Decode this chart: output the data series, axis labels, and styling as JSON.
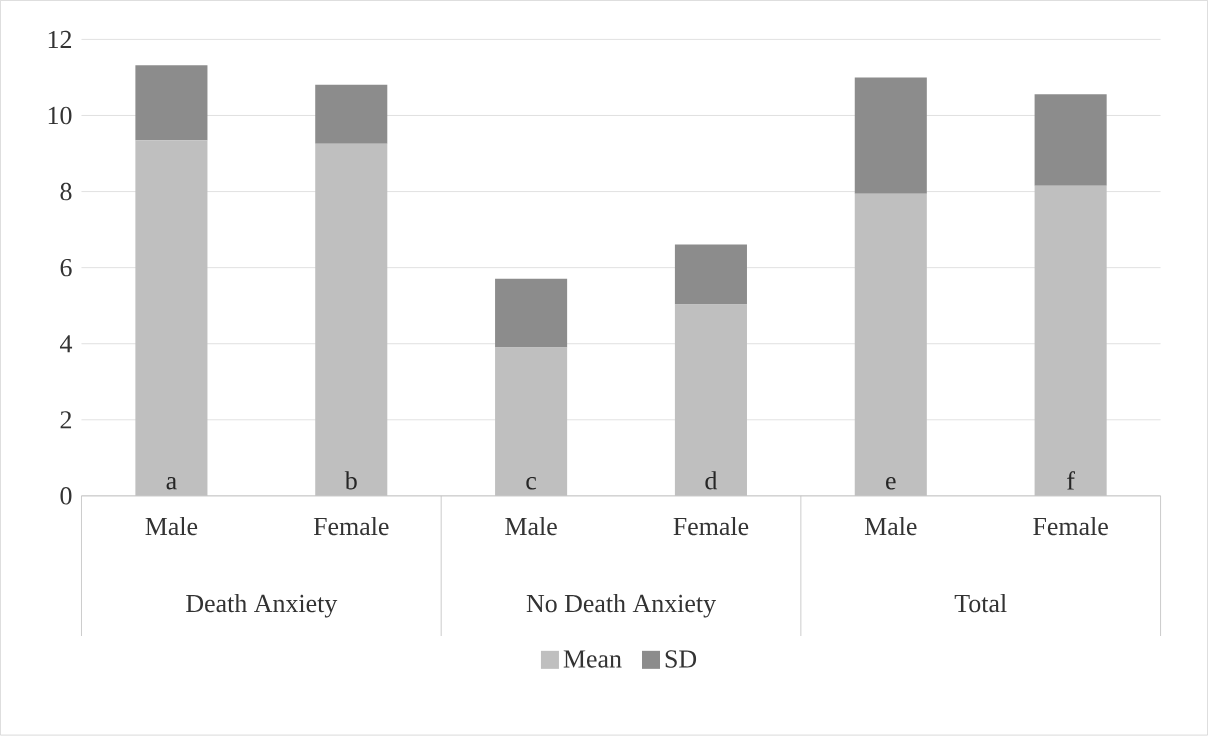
{
  "chart_data": {
    "type": "bar",
    "stacked": true,
    "categories": [
      "Male",
      "Female",
      "Male",
      "Female",
      "Male",
      "Female"
    ],
    "series": [
      {
        "name": "Mean",
        "color": "#bfbfbf",
        "values": [
          9.35,
          9.26,
          3.9,
          5.03,
          7.94,
          8.15
        ],
        "value_labels": [
          "a",
          "b",
          "c",
          "d",
          "e",
          "f"
        ]
      },
      {
        "name": "SD",
        "color": "#8c8c8c",
        "values": [
          1.97,
          1.55,
          1.81,
          1.58,
          3.06,
          2.41
        ]
      }
    ],
    "annotations": [
      "Death Anxiety",
      "No Death Anxiety",
      "Total"
    ],
    "ylim": [
      0,
      12
    ],
    "yticks": [
      0,
      2,
      4,
      6,
      8,
      10,
      12
    ],
    "grid": "y",
    "legend": "bottom"
  }
}
